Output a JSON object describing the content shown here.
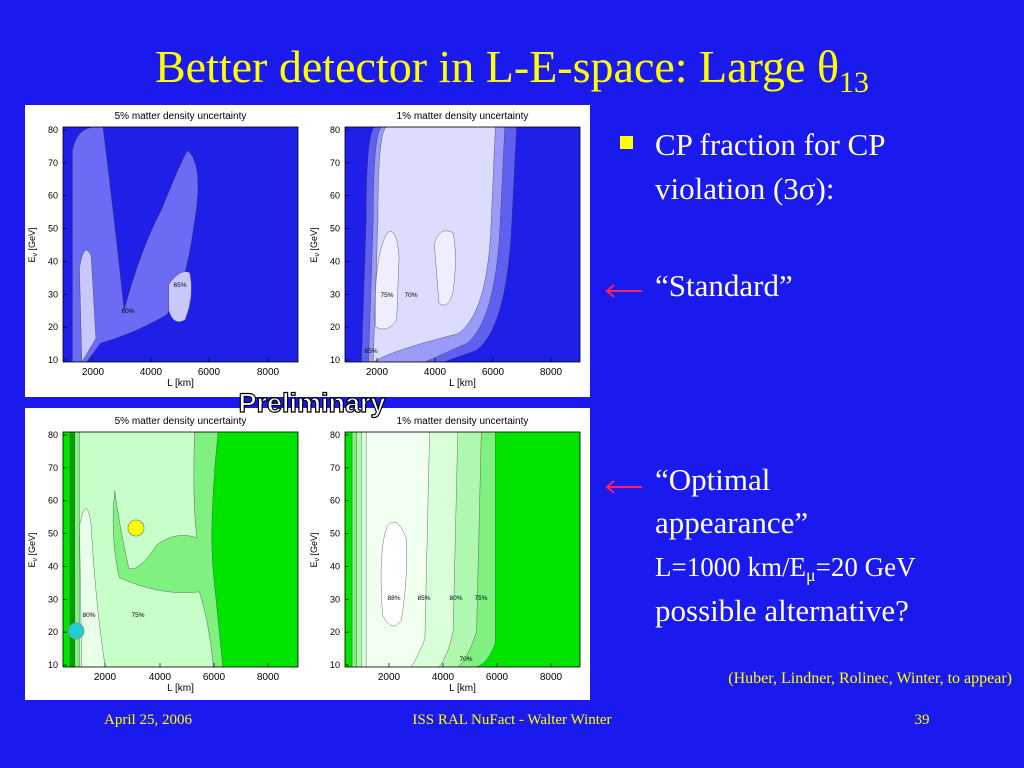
{
  "title": {
    "text": "Better detector in L-E-space: Large θ",
    "subscript": "13"
  },
  "bullet": {
    "lines": [
      "CP fraction for CP",
      "violation (3σ):"
    ]
  },
  "standard": "“Standard”",
  "optimal": {
    "lines": [
      "“Optimal",
      "appearance”"
    ],
    "detail": {
      "before": "L=1000 km/E",
      "subscript": "μ",
      "after": "=20 GeV"
    },
    "question": "possible alternative?"
  },
  "panels": [
    {
      "title": "5% matter density uncertainty",
      "xlabel": "L [km]",
      "ylabel": {
        "main": "E",
        "subscript": "ν",
        "unit": " [GeV]"
      },
      "xticks": [
        "2000",
        "4000",
        "6000",
        "8000"
      ],
      "yticks": [
        "80",
        "70",
        "60",
        "50",
        "40",
        "30",
        "20",
        "10"
      ],
      "contour_labels": [
        "60%",
        "65%"
      ]
    },
    {
      "title": "1% matter density uncertainty",
      "xlabel": "L [km]",
      "ylabel": {
        "main": "E",
        "subscript": "ν",
        "unit": " [GeV]"
      },
      "xticks": [
        "2000",
        "4000",
        "6000",
        "8000"
      ],
      "yticks": [
        "80",
        "70",
        "60",
        "50",
        "40",
        "30",
        "20",
        "10"
      ],
      "contour_labels": [
        "75%",
        "70%",
        "65%"
      ]
    },
    {
      "title": "5% matter density uncertainty",
      "xlabel": "L [km]",
      "ylabel": {
        "main": "E",
        "subscript": "ν",
        "unit": " [GeV]"
      },
      "xticks": [
        "2000",
        "4000",
        "6000",
        "8000"
      ],
      "yticks": [
        "80",
        "70",
        "60",
        "50",
        "40",
        "30",
        "20",
        "10"
      ],
      "contour_labels": [
        "80%",
        "75%"
      ]
    },
    {
      "title": "1% matter density uncertainty",
      "xlabel": "L [km]",
      "ylabel": {
        "main": "E",
        "subscript": "ν",
        "unit": " [GeV]"
      },
      "xticks": [
        "2000",
        "4000",
        "6000",
        "8000"
      ],
      "yticks": [
        "80",
        "70",
        "60",
        "50",
        "40",
        "30",
        "20",
        "10"
      ],
      "contour_labels": [
        "88%",
        "85%",
        "80%",
        "75%",
        "70%"
      ]
    }
  ],
  "watermark": "Preliminary",
  "citation": "(Huber, Lindner, Rolinec, Winter, to appear)",
  "footer": {
    "date": "April 25, 2006",
    "center": "ISS RAL NuFact - Walter Winter",
    "page": "39"
  }
}
